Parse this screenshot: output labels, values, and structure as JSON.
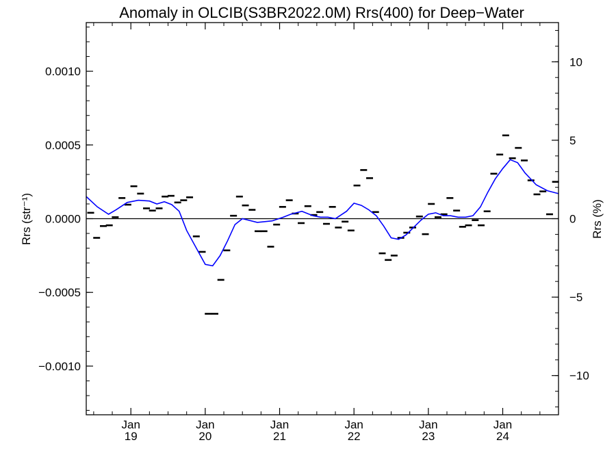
{
  "chart_data": {
    "type": "line",
    "title": "Anomaly in OLCIB(S3BR2022.0M) Rrs(400) for Deep−Water",
    "ylabel_left": "Rrs (str⁻¹)",
    "ylabel_right": "Rrs (%)",
    "xlabel": "",
    "xlim": [
      2018.4,
      2024.75
    ],
    "ylim_left": [
      -0.00133,
      0.00133
    ],
    "ylim_right": [
      -12.5,
      12.5
    ],
    "yticks_left": [
      {
        "value": 0.001,
        "label": "0.0010"
      },
      {
        "value": 0.0005,
        "label": "0.0005"
      },
      {
        "value": 0.0,
        "label": "0.0000"
      },
      {
        "value": -0.0005,
        "label": "−0.0005"
      },
      {
        "value": -0.001,
        "label": "−0.0010"
      }
    ],
    "yticks_right": [
      {
        "value": 10,
        "label": "10"
      },
      {
        "value": 5,
        "label": "5"
      },
      {
        "value": 0,
        "label": "0"
      },
      {
        "value": -5,
        "label": "−5"
      },
      {
        "value": -10,
        "label": "−10"
      }
    ],
    "xticks": [
      {
        "value": 2019.0,
        "label_top": "Jan",
        "label_bottom": "19"
      },
      {
        "value": 2020.0,
        "label_top": "Jan",
        "label_bottom": "20"
      },
      {
        "value": 2021.0,
        "label_top": "Jan",
        "label_bottom": "21"
      },
      {
        "value": 2022.0,
        "label_top": "Jan",
        "label_bottom": "22"
      },
      {
        "value": 2023.0,
        "label_top": "Jan",
        "label_bottom": "23"
      },
      {
        "value": 2024.0,
        "label_top": "Jan",
        "label_bottom": "24"
      }
    ],
    "zero_line": true,
    "grid": false,
    "colors": {
      "smooth_line": "#0000ff",
      "monthly_marks": "#000000",
      "axes": "#000000"
    },
    "series": [
      {
        "marker": "dash",
        "x": [
          2018.46,
          2018.54,
          2018.63,
          2018.71,
          2018.79,
          2018.88,
          2018.96,
          2019.04,
          2019.13,
          2019.21,
          2019.29,
          2019.38,
          2019.46,
          2019.54,
          2019.63,
          2019.71,
          2019.79,
          2019.88,
          2019.96,
          2020.04,
          2020.13,
          2020.21,
          2020.29,
          2020.38,
          2020.46,
          2020.54,
          2020.63,
          2020.71,
          2020.79,
          2020.88,
          2020.96,
          2021.04,
          2021.13,
          2021.21,
          2021.29,
          2021.38,
          2021.46,
          2021.54,
          2021.63,
          2021.71,
          2021.79,
          2021.88,
          2021.96,
          2022.04,
          2022.13,
          2022.21,
          2022.29,
          2022.38,
          2022.46,
          2022.54,
          2022.63,
          2022.71,
          2022.79,
          2022.88,
          2022.96,
          2023.04,
          2023.13,
          2023.21,
          2023.29,
          2023.38,
          2023.46,
          2023.54,
          2023.63,
          2023.71,
          2023.79,
          2023.88,
          2023.96,
          2024.04,
          2024.13,
          2024.21,
          2024.29,
          2024.38,
          2024.46,
          2024.54,
          2024.63,
          2024.71
        ],
        "y": [
          4e-05,
          -0.00013,
          -5e-05,
          -4.5e-05,
          1e-05,
          0.00014,
          9.5e-05,
          0.00022,
          0.00017,
          7e-05,
          5.5e-05,
          7e-05,
          0.00015,
          0.000155,
          0.00011,
          0.000125,
          0.000145,
          -0.00012,
          -0.000225,
          -0.000645,
          -0.000645,
          -0.000415,
          -0.000215,
          2e-05,
          0.00015,
          9e-05,
          6e-05,
          -8.5e-05,
          -8.5e-05,
          -0.00019,
          -4e-05,
          8e-05,
          0.000125,
          3.5e-05,
          -3e-05,
          8.5e-05,
          2.5e-05,
          4.5e-05,
          -3.5e-05,
          8e-05,
          -6e-05,
          -2e-05,
          -8e-05,
          0.000225,
          0.00033,
          0.000275,
          4.5e-05,
          -0.000235,
          -0.00028,
          -0.00025,
          -0.00013,
          -9.5e-05,
          -6e-05,
          1.5e-05,
          -0.000105,
          0.0001,
          1e-05,
          3e-05,
          0.00014,
          5.5e-05,
          -5.5e-05,
          -4.5e-05,
          -1e-05,
          -4.5e-05,
          5e-05,
          0.000305,
          0.000435,
          0.000565,
          0.00041,
          0.00048,
          0.000395,
          0.00026,
          0.000165,
          0.000185,
          3e-05,
          0.00025
        ]
      },
      {
        "marker": "line",
        "x": [
          2018.4,
          2018.55,
          2018.7,
          2018.8,
          2018.95,
          2019.1,
          2019.25,
          2019.35,
          2019.45,
          2019.55,
          2019.65,
          2019.75,
          2020.0,
          2020.1,
          2020.2,
          2020.3,
          2020.4,
          2020.5,
          2020.7,
          2020.9,
          2021.05,
          2021.15,
          2021.3,
          2021.45,
          2021.55,
          2021.65,
          2021.75,
          2021.9,
          2022.0,
          2022.1,
          2022.2,
          2022.3,
          2022.4,
          2022.5,
          2022.6,
          2022.7,
          2022.8,
          2022.9,
          2023.0,
          2023.1,
          2023.2,
          2023.3,
          2023.4,
          2023.5,
          2023.6,
          2023.7,
          2023.8,
          2023.9,
          2024.0,
          2024.1,
          2024.2,
          2024.3,
          2024.45,
          2024.6,
          2024.75
        ],
        "y": [
          0.00015,
          8e-05,
          3e-05,
          6e-05,
          0.00011,
          0.000125,
          0.00012,
          0.0001,
          0.000115,
          9.5e-05,
          5e-05,
          -8e-05,
          -0.00031,
          -0.00032,
          -0.00025,
          -0.00015,
          -4e-05,
          0.0,
          -2.5e-05,
          -1.5e-05,
          1e-05,
          3e-05,
          5e-05,
          2e-05,
          1e-05,
          1e-05,
          0.0,
          5e-05,
          0.000105,
          9e-05,
          6e-05,
          2e-05,
          -5e-05,
          -0.00013,
          -0.00014,
          -0.00011,
          -6e-05,
          -1e-05,
          3e-05,
          4e-05,
          2e-05,
          2e-05,
          1e-05,
          1e-05,
          2e-05,
          8e-05,
          0.00018,
          0.00027,
          0.00034,
          0.0004,
          0.00038,
          0.00031,
          0.00023,
          0.00019,
          0.00017
        ]
      }
    ]
  }
}
